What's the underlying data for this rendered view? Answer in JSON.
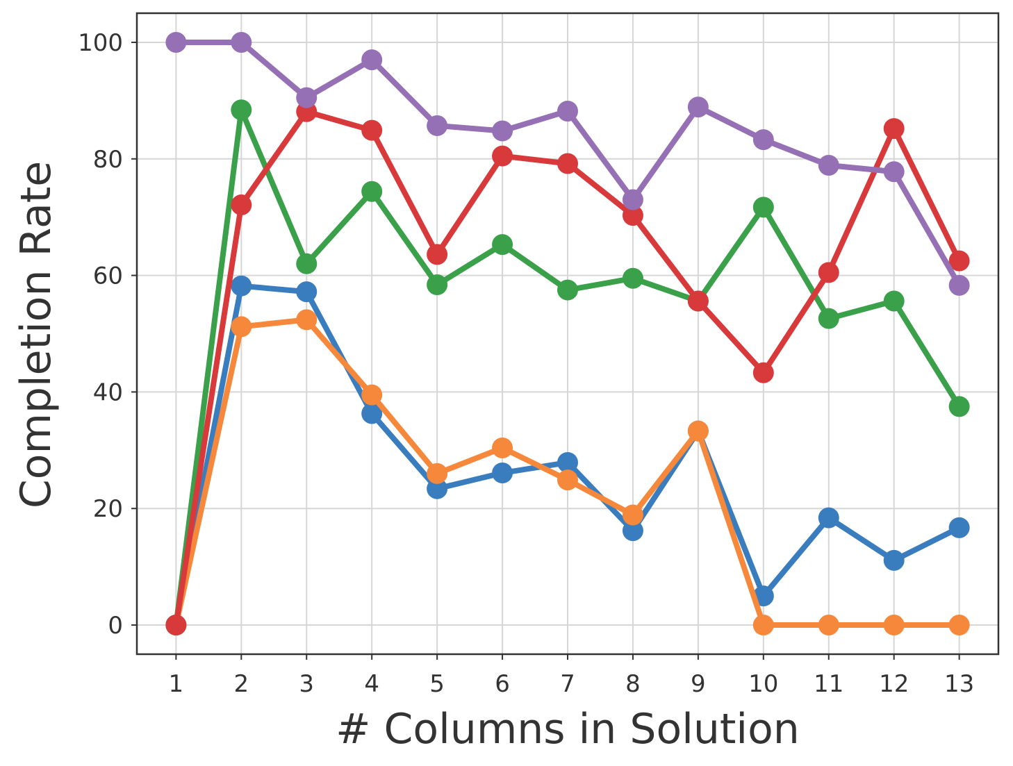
{
  "chart_data": {
    "type": "line",
    "title": "",
    "xlabel": "# Columns in Solution",
    "ylabel": "Completion Rate",
    "x": [
      1,
      2,
      3,
      4,
      5,
      6,
      7,
      8,
      9,
      10,
      11,
      12,
      13
    ],
    "xlim": [
      0.4,
      13.6
    ],
    "ylim": [
      -5,
      105
    ],
    "yticks": [
      0,
      20,
      40,
      60,
      80,
      100
    ],
    "grid": true,
    "legend": "none",
    "series": [
      {
        "color": "#3a7dbf",
        "values": [
          0,
          58.2,
          57.2,
          36.3,
          23.4,
          26.1,
          27.9,
          16.2,
          33.3,
          5.0,
          18.4,
          11.1,
          16.7
        ]
      },
      {
        "color": "#f5883a",
        "values": [
          0,
          51.2,
          52.4,
          39.5,
          26.0,
          30.4,
          24.9,
          18.9,
          33.3,
          0,
          0,
          0,
          0
        ]
      },
      {
        "color": "#3aa04a",
        "values": [
          0,
          88.4,
          62.0,
          74.4,
          58.4,
          65.3,
          57.5,
          59.5,
          55.6,
          71.7,
          52.6,
          55.6,
          37.5
        ]
      },
      {
        "color": "#d83a3b",
        "values": [
          0,
          72.1,
          88.1,
          84.9,
          63.6,
          80.5,
          79.2,
          70.3,
          55.6,
          43.3,
          60.5,
          85.2,
          62.5
        ]
      },
      {
        "color": "#9570b5",
        "values": [
          100,
          100,
          90.5,
          97.0,
          85.7,
          84.8,
          88.2,
          73.0,
          88.9,
          83.3,
          78.9,
          77.8,
          58.3
        ]
      }
    ]
  }
}
